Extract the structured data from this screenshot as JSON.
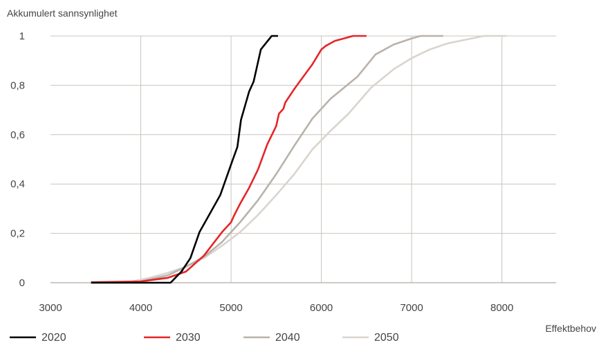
{
  "chart_data": {
    "type": "line",
    "title": "",
    "ylabel": "Akkumulert sannsynlighet",
    "xlabel": "Effektbehov",
    "xlim": [
      3000,
      8600
    ],
    "ylim": [
      0,
      1
    ],
    "x_ticks": [
      3000,
      4000,
      5000,
      6000,
      7000,
      8000
    ],
    "y_ticks": [
      0,
      0.2,
      0.4,
      0.6,
      0.8,
      1
    ],
    "y_tick_labels": [
      "0",
      "0,2",
      "0,4",
      "0,6",
      "0,8",
      "1"
    ],
    "grid": true,
    "legend_position": "bottom-left",
    "series": [
      {
        "name": "2020",
        "color": "#000000",
        "points": [
          [
            3450,
            0
          ],
          [
            4330,
            0
          ],
          [
            4450,
            0.045
          ],
          [
            4550,
            0.1
          ],
          [
            4650,
            0.205
          ],
          [
            4750,
            0.27
          ],
          [
            4880,
            0.355
          ],
          [
            5020,
            0.5
          ],
          [
            5070,
            0.55
          ],
          [
            5110,
            0.66
          ],
          [
            5200,
            0.775
          ],
          [
            5250,
            0.815
          ],
          [
            5330,
            0.945
          ],
          [
            5450,
            1.0
          ],
          [
            5520,
            1.0
          ]
        ]
      },
      {
        "name": "2030",
        "color": "#e52528",
        "points": [
          [
            3450,
            0.002
          ],
          [
            4000,
            0.005
          ],
          [
            4300,
            0.02
          ],
          [
            4500,
            0.045
          ],
          [
            4700,
            0.11
          ],
          [
            4900,
            0.205
          ],
          [
            5000,
            0.245
          ],
          [
            5030,
            0.27
          ],
          [
            5100,
            0.32
          ],
          [
            5200,
            0.385
          ],
          [
            5300,
            0.46
          ],
          [
            5400,
            0.56
          ],
          [
            5500,
            0.635
          ],
          [
            5530,
            0.685
          ],
          [
            5580,
            0.705
          ],
          [
            5600,
            0.73
          ],
          [
            5700,
            0.785
          ],
          [
            5800,
            0.835
          ],
          [
            5900,
            0.885
          ],
          [
            6000,
            0.945
          ],
          [
            6050,
            0.96
          ],
          [
            6150,
            0.98
          ],
          [
            6250,
            0.99
          ],
          [
            6350,
            1.0
          ],
          [
            6500,
            1.0
          ]
        ]
      },
      {
        "name": "2040",
        "color": "#b8b2ab",
        "points": [
          [
            3450,
            0
          ],
          [
            4000,
            0.005
          ],
          [
            4300,
            0.03
          ],
          [
            4500,
            0.065
          ],
          [
            4700,
            0.105
          ],
          [
            4900,
            0.165
          ],
          [
            5100,
            0.245
          ],
          [
            5300,
            0.335
          ],
          [
            5500,
            0.44
          ],
          [
            5700,
            0.555
          ],
          [
            5900,
            0.665
          ],
          [
            6100,
            0.745
          ],
          [
            6250,
            0.79
          ],
          [
            6400,
            0.835
          ],
          [
            6600,
            0.925
          ],
          [
            6800,
            0.965
          ],
          [
            7000,
            0.99
          ],
          [
            7100,
            1.0
          ],
          [
            7350,
            1.0
          ]
        ]
      },
      {
        "name": "2050",
        "color": "#d9d4ce",
        "points": [
          [
            3450,
            0
          ],
          [
            3900,
            0.005
          ],
          [
            4100,
            0.02
          ],
          [
            4300,
            0.04
          ],
          [
            4500,
            0.065
          ],
          [
            4700,
            0.1
          ],
          [
            4900,
            0.15
          ],
          [
            5100,
            0.205
          ],
          [
            5300,
            0.275
          ],
          [
            5500,
            0.355
          ],
          [
            5700,
            0.44
          ],
          [
            5900,
            0.54
          ],
          [
            6100,
            0.615
          ],
          [
            6300,
            0.685
          ],
          [
            6550,
            0.79
          ],
          [
            6800,
            0.865
          ],
          [
            7000,
            0.91
          ],
          [
            7200,
            0.945
          ],
          [
            7400,
            0.97
          ],
          [
            7600,
            0.985
          ],
          [
            7800,
            1.0
          ],
          [
            8050,
            1.0
          ]
        ]
      }
    ]
  }
}
